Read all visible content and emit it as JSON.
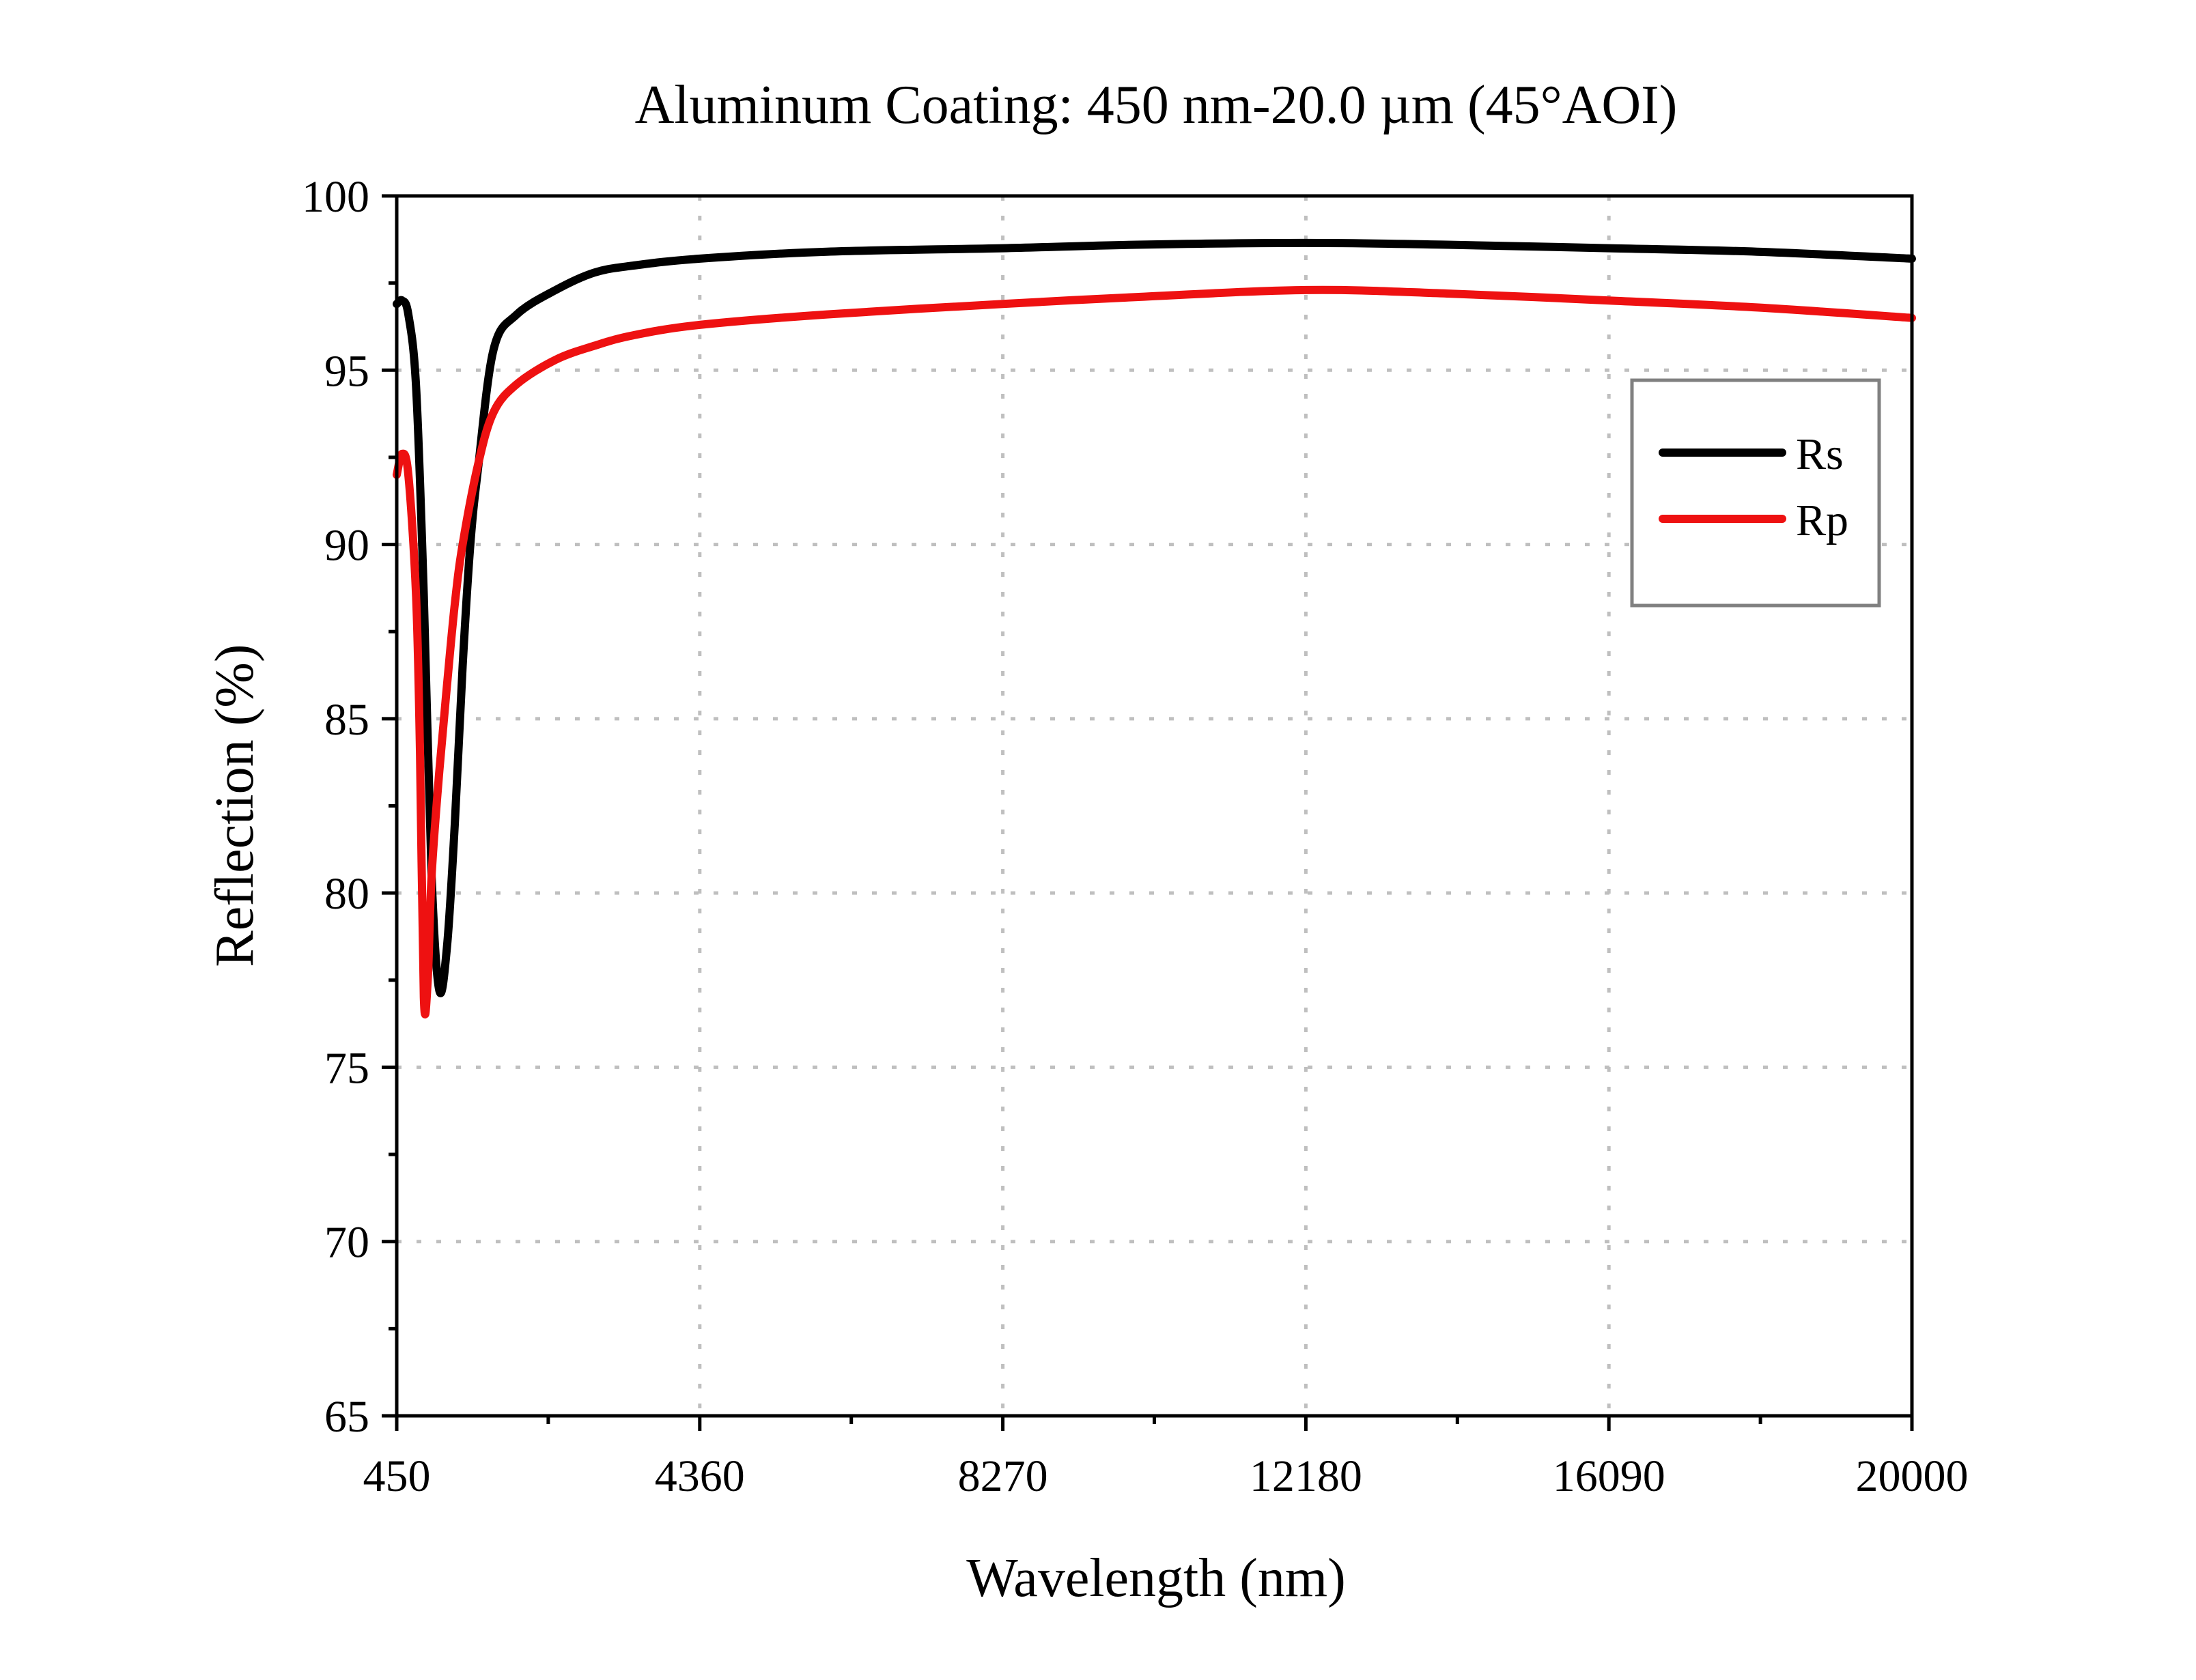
{
  "chart_data": {
    "type": "line",
    "title": "Aluminum Coating: 450 nm-20.0 µm (45°AOI)",
    "xlabel": "Wavelength (nm)",
    "ylabel": "Reflection (%)",
    "xlim": [
      450,
      20000
    ],
    "ylim": [
      65,
      100
    ],
    "xticks": [
      450,
      4360,
      8270,
      12180,
      16090,
      20000
    ],
    "yticks": [
      65,
      70,
      75,
      80,
      85,
      90,
      95,
      100
    ],
    "grid": true,
    "legend_position": "top-right",
    "series": [
      {
        "name": "Rs",
        "color": "#000000",
        "x": [
          450,
          520,
          600,
          700,
          800,
          900,
          1000,
          1100,
          1200,
          1300,
          1400,
          1500,
          1700,
          2000,
          2500,
          3000,
          3500,
          4360,
          6000,
          8270,
          10000,
          12180,
          14000,
          16090,
          18000,
          20000
        ],
        "y": [
          96.9,
          97.0,
          96.6,
          94.5,
          88.5,
          80.5,
          77.2,
          78.5,
          82.0,
          86.5,
          90.0,
          92.2,
          95.6,
          96.6,
          97.3,
          97.8,
          98.0,
          98.2,
          98.4,
          98.5,
          98.6,
          98.65,
          98.6,
          98.5,
          98.4,
          98.2
        ]
      },
      {
        "name": "Rp",
        "color": "#ee1111",
        "x": [
          450,
          520,
          600,
          700,
          750,
          800,
          850,
          900,
          1000,
          1100,
          1200,
          1300,
          1500,
          1700,
          2000,
          2500,
          3000,
          3500,
          4360,
          6000,
          8270,
          10000,
          12180,
          14000,
          16090,
          18000,
          20000
        ],
        "y": [
          92.0,
          92.6,
          92.0,
          88.5,
          84.0,
          77.0,
          77.5,
          80.5,
          83.5,
          86.0,
          88.3,
          90.0,
          92.3,
          93.8,
          94.6,
          95.3,
          95.7,
          96.0,
          96.3,
          96.6,
          96.9,
          97.1,
          97.3,
          97.2,
          97.0,
          96.8,
          96.5
        ]
      }
    ]
  }
}
